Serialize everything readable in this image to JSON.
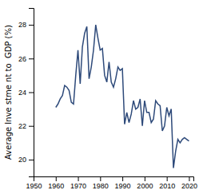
{
  "chart_data": {
    "type": "line",
    "ylabel": "Average Inve stme nt to  GDP (%)",
    "x": [
      1960,
      1961,
      1962,
      1963,
      1964,
      1965,
      1966,
      1967,
      1968,
      1969,
      1970,
      1971,
      1972,
      1973,
      1974,
      1975,
      1976,
      1977,
      1978,
      1979,
      1980,
      1981,
      1982,
      1983,
      1984,
      1985,
      1986,
      1987,
      1988,
      1989,
      1990,
      1991,
      1992,
      1993,
      1994,
      1995,
      1996,
      1997,
      1998,
      1999,
      2000,
      2001,
      2002,
      2003,
      2004,
      2005,
      2006,
      2007,
      2008,
      2009,
      2010,
      2011,
      2012,
      2013,
      2014,
      2015,
      2016,
      2017,
      2018,
      2019,
      2020
    ],
    "values": [
      23.1,
      23.3,
      23.6,
      23.8,
      24.4,
      24.3,
      24.1,
      23.4,
      23.3,
      25.0,
      26.5,
      24.5,
      26.7,
      27.5,
      27.9,
      24.8,
      25.5,
      26.5,
      28.0,
      27.2,
      26.5,
      26.6,
      25.0,
      24.6,
      25.8,
      24.6,
      24.3,
      24.8,
      25.5,
      25.3,
      25.4,
      22.1,
      22.8,
      22.2,
      22.7,
      23.5,
      23.0,
      23.1,
      23.6,
      22.0,
      23.5,
      22.8,
      22.8,
      22.2,
      22.4,
      23.5,
      23.3,
      23.2,
      21.7,
      22.0,
      23.1,
      22.6,
      23.0,
      19.5,
      20.5,
      21.2,
      21.0,
      21.2,
      21.3,
      21.2,
      21.1
    ],
    "color": "#2e4a7a",
    "xlim": [
      1950,
      2022
    ],
    "ylim": [
      19.0,
      29.0
    ],
    "xticks": [
      1950,
      1960,
      1970,
      1980,
      1990,
      2000,
      2010,
      2020
    ],
    "yticks": [
      20,
      22,
      24,
      26,
      28
    ]
  }
}
